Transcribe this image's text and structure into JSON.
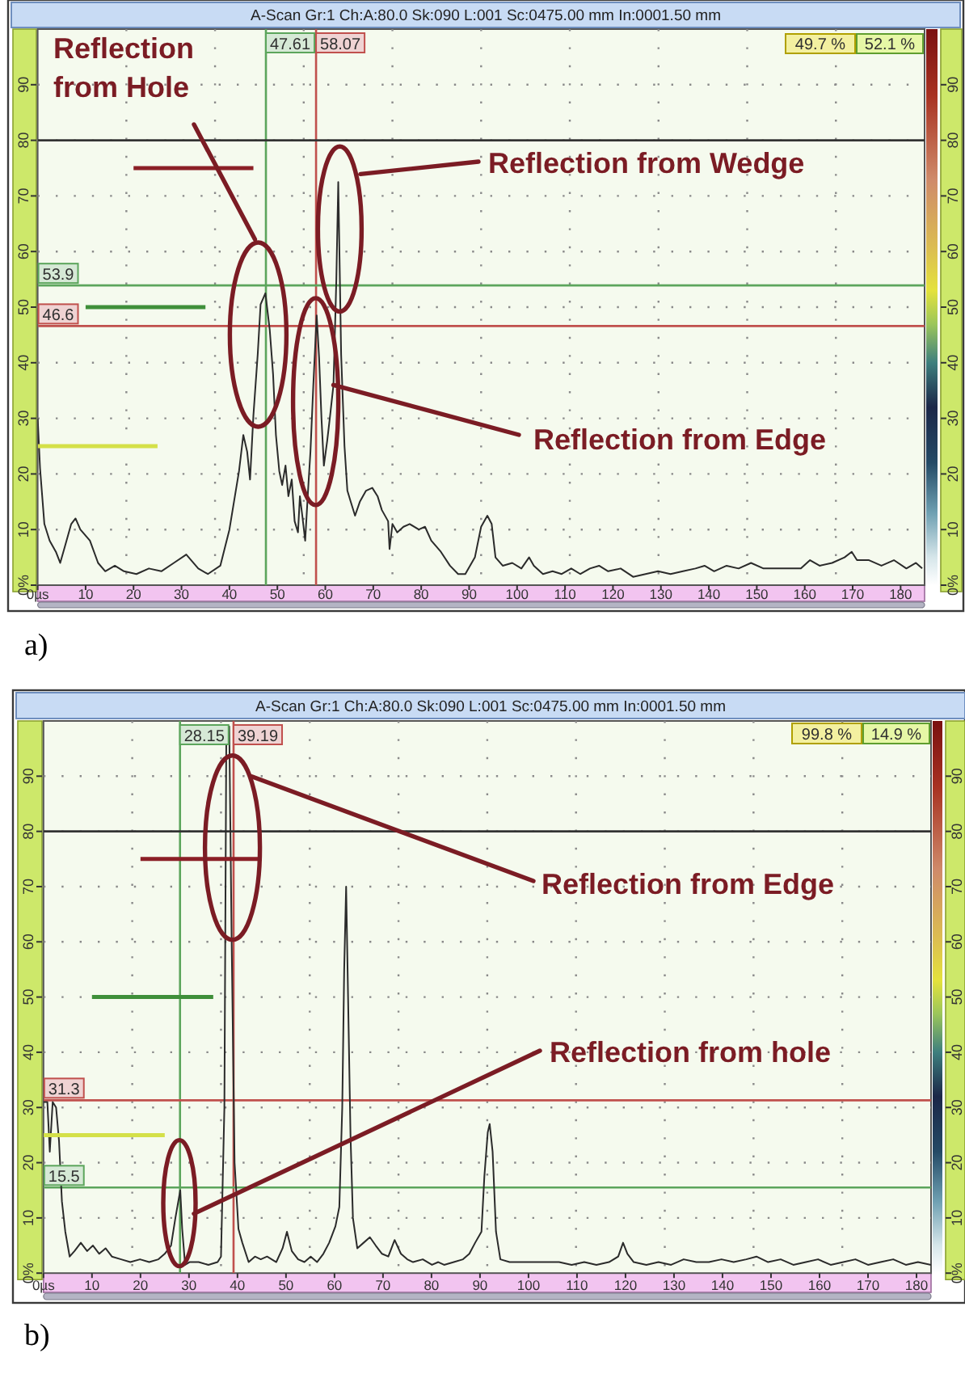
{
  "chart_data": [
    {
      "type": "line",
      "title": "A-Scan Gr:1 Ch:A:80.0 Sk:090 L:001 Sc:0475.00 mm In:0001.50 mm",
      "xlim": [
        0,
        185
      ],
      "xticks": [
        {
          "value": 0,
          "label": "0µs"
        },
        10,
        20,
        30,
        40,
        50,
        60,
        70,
        80,
        90,
        100,
        110,
        120,
        130,
        140,
        150,
        160,
        170,
        180
      ],
      "ylim": [
        0,
        100
      ],
      "yticks": [
        {
          "value": 0,
          "label": "0%"
        },
        10,
        20,
        30,
        40,
        50,
        60,
        70,
        80,
        90
      ],
      "y2lim": [
        0,
        100
      ],
      "y2ticks": [
        {
          "value": 0,
          "label": "0%"
        },
        10,
        20,
        30,
        40,
        50,
        60,
        70,
        80,
        90
      ],
      "grid": true,
      "series": [
        {
          "color": "#2b2b2b",
          "x": [
            0,
            0.5,
            1.4,
            2.5,
            3.8,
            4.7,
            5.7,
            7,
            7.9,
            8.9,
            10.9,
            12.6,
            14.1,
            16.1,
            18,
            20.6,
            23.2,
            25.8,
            28.4,
            31,
            33.5,
            35.5,
            38.1,
            40,
            42,
            42.9,
            43.7,
            44.3,
            45,
            45.9,
            46.5,
            47.5,
            48.4,
            49.1,
            49.7,
            50.4,
            51,
            51.7,
            52.3,
            53,
            53.6,
            54.3,
            54.7,
            55.2,
            55.8,
            56.5,
            56.9,
            57.5,
            58.2,
            58.7,
            59.2,
            59.7,
            60.4,
            61,
            61.7,
            62.3,
            62.7,
            63.3,
            64,
            64.6,
            65.3,
            66.2,
            67.2,
            68.5,
            69.8,
            70.9,
            71.8,
            73.1,
            73.4,
            74,
            75,
            76.3,
            77.6,
            79.5,
            80.8,
            82.1,
            84.1,
            86,
            87.7,
            89.2,
            91.2,
            92.5,
            93.8,
            94.7,
            95.5,
            97,
            99,
            100.9,
            102.5,
            103.5,
            105.4,
            107.4,
            109.3,
            111.3,
            113.2,
            115.2,
            117.1,
            119,
            121.6,
            124.2,
            126.8,
            129.4,
            132,
            134.6,
            137.2,
            139.1,
            141.1,
            143.7,
            146.2,
            148.8,
            151.4,
            154,
            156.6,
            159.2,
            161.1,
            163.1,
            165.7,
            168.3,
            169.8,
            170.9,
            173.4,
            176,
            178.6,
            181.2,
            183.2,
            184.5
          ],
          "values": [
            30,
            21,
            11,
            8,
            6,
            4,
            7,
            11,
            12,
            10,
            8,
            4,
            2.5,
            3.5,
            2.5,
            2,
            3,
            2.5,
            4,
            5.5,
            3,
            2,
            3.5,
            10,
            20.5,
            27,
            24,
            19,
            30.5,
            41.5,
            50.5,
            52.5,
            46,
            38,
            27,
            20.5,
            18,
            21.5,
            16,
            19,
            11.5,
            9.5,
            16,
            12.5,
            8,
            18.5,
            24,
            36,
            48.5,
            41,
            30,
            21.5,
            26,
            30.5,
            36,
            55,
            72.5,
            41.5,
            25,
            17,
            15,
            12.5,
            15,
            17,
            17.5,
            16,
            13.5,
            11.5,
            6.5,
            11,
            9.5,
            10.5,
            11,
            10,
            10.5,
            8,
            6,
            3.5,
            2,
            2,
            5,
            10.5,
            12.5,
            11,
            5,
            3.5,
            4,
            3,
            5,
            3.5,
            2,
            2.5,
            2,
            3,
            2,
            3,
            3.5,
            2.5,
            3,
            1.5,
            2,
            2.5,
            2,
            2.5,
            3,
            3.5,
            2.5,
            3.5,
            3,
            4,
            3,
            3,
            3,
            3,
            4.5,
            3.5,
            4,
            5,
            6,
            4.5,
            4.5,
            3.5,
            4.5,
            3,
            4,
            3
          ]
        },
        {
          "color": "#8b1f26",
          "x": [
            20,
            45
          ],
          "values": [
            75,
            75
          ]
        },
        {
          "color": "#3f8f3a",
          "x": [
            10,
            35
          ],
          "values": [
            50,
            50
          ]
        },
        {
          "color": "#d4e048",
          "x": [
            0,
            25
          ],
          "values": [
            25,
            25
          ]
        }
      ],
      "ref_lines": [
        {
          "axis": "x",
          "value": 47.61,
          "label": "47.61",
          "color": "#5ca55c"
        },
        {
          "axis": "x",
          "value": 58.07,
          "label": "58.07",
          "color": "#c0504d"
        },
        {
          "axis": "y",
          "value": 53.9,
          "label": "53.9",
          "color": "#5ca55c"
        },
        {
          "axis": "y",
          "value": 46.6,
          "label": "46.6",
          "color": "#c0504d"
        },
        {
          "axis": "y",
          "value": 80,
          "color": "#333333"
        }
      ],
      "annotations": [
        "49.7 %",
        "52.1 %",
        "Reflection from Hole",
        "Reflection from Wedge",
        {
          "text": "Reflection from Edge",
          "x": 61.7,
          "y": 36
        },
        "a)"
      ]
    },
    {
      "type": "line",
      "title": "A-Scan Gr:1 Ch:A:80.0 Sk:090 L:001 Sc:0475.00 mm In:0001.50 mm",
      "xlim": [
        0,
        183
      ],
      "xticks": [
        {
          "value": 0,
          "label": "0µs"
        },
        10,
        20,
        30,
        40,
        50,
        60,
        70,
        80,
        90,
        100,
        110,
        120,
        130,
        140,
        150,
        160,
        170,
        180
      ],
      "ylim": [
        0,
        100
      ],
      "yticks": [
        {
          "value": 0,
          "label": "0%"
        },
        10,
        20,
        30,
        40,
        50,
        60,
        70,
        80,
        90
      ],
      "y2lim": [
        0,
        100
      ],
      "y2ticks": [
        {
          "value": 0,
          "label": "0%"
        },
        10,
        20,
        30,
        40,
        50,
        60,
        70,
        80,
        90
      ],
      "grid": true,
      "series": [
        {
          "color": "#2b2b2b",
          "x": [
            0,
            0.8,
            1.3,
            1.9,
            2.6,
            3.2,
            3.8,
            4.5,
            5.4,
            6.4,
            7.7,
            9,
            10.2,
            11.5,
            12.8,
            14.1,
            16,
            17.9,
            19.9,
            21.8,
            23.7,
            25,
            26.3,
            27.2,
            28.2,
            28.6,
            29.2,
            30.1,
            32,
            34,
            35.9,
            36.6,
            37.3,
            37.7,
            38.3,
            38.8,
            39.4,
            40.2,
            41,
            42.3,
            43.6,
            44.8,
            46.1,
            48,
            49.3,
            50.2,
            51.2,
            52.5,
            53.8,
            55.1,
            56.4,
            57.7,
            58.9,
            60.2,
            61,
            61.6,
            62,
            62.4,
            62.8,
            63.3,
            63.8,
            64.7,
            66,
            67.3,
            68.5,
            69.8,
            71.1,
            72.4,
            73.7,
            75,
            76.2,
            78.2,
            80.1,
            81.4,
            82.6,
            84.6,
            86.5,
            87.8,
            89,
            90.3,
            90.9,
            91.6,
            92,
            92.6,
            93.3,
            94.2,
            96.1,
            98.7,
            101.2,
            103.8,
            106.3,
            108.9,
            111.5,
            114,
            116.6,
            118.5,
            119.5,
            120.4,
            121.7,
            124.3,
            126.8,
            129.4,
            132,
            134.6,
            137.2,
            139.8,
            142.3,
            144.9,
            147,
            149.4,
            152,
            154.6,
            157.2,
            159.7,
            162.3,
            164.9,
            167.4,
            170,
            172.6,
            175.2,
            177.8,
            180.3,
            183
          ],
          "values": [
            31,
            31,
            22,
            31,
            30,
            24,
            13,
            7.5,
            3,
            4,
            5.5,
            4,
            5,
            3.5,
            4.5,
            3,
            2.5,
            2,
            2.5,
            2,
            2.5,
            3.5,
            5,
            10,
            15,
            8,
            1.5,
            2,
            2,
            1.5,
            2,
            3,
            30,
            98,
            99,
            60,
            20,
            8,
            5.5,
            2,
            3,
            2.5,
            3,
            2,
            4.5,
            7.5,
            4,
            2.5,
            2,
            3,
            2,
            3.5,
            5.5,
            8.5,
            12,
            30,
            55,
            70,
            50,
            25,
            10,
            4.5,
            5.5,
            6.5,
            5,
            3.5,
            3,
            6,
            3.5,
            2.5,
            2,
            2.5,
            1.5,
            2,
            1.5,
            2,
            2.5,
            3.5,
            5.5,
            7.5,
            17.5,
            25.5,
            27,
            22,
            7.5,
            2.5,
            2,
            2,
            2,
            2,
            2,
            1.5,
            2,
            1.5,
            2,
            3,
            5.5,
            3.5,
            2,
            1.5,
            2,
            1.5,
            2.5,
            2,
            2,
            2.5,
            2,
            2.5,
            3,
            2,
            2.5,
            1.5,
            2,
            2.5,
            1.5,
            2,
            2.5,
            1.5,
            2,
            2.5,
            1.5,
            2,
            1.5
          ]
        },
        {
          "color": "#8b1f26",
          "x": [
            20,
            45
          ],
          "values": [
            75,
            75
          ]
        },
        {
          "color": "#3f8f3a",
          "x": [
            10,
            35
          ],
          "values": [
            50,
            50
          ]
        },
        {
          "color": "#d4e048",
          "x": [
            0,
            25
          ],
          "values": [
            25,
            25
          ]
        }
      ],
      "ref_lines": [
        {
          "axis": "x",
          "value": 28.15,
          "label": "28.15",
          "color": "#5ca55c"
        },
        {
          "axis": "x",
          "value": 39.19,
          "label": "39.19",
          "color": "#c0504d"
        },
        {
          "axis": "y",
          "value": 31.3,
          "label": "31.3",
          "color": "#c0504d"
        },
        {
          "axis": "y",
          "value": 15.5,
          "label": "15.5",
          "color": "#5ca55c"
        },
        {
          "axis": "y",
          "value": 80,
          "color": "#333333"
        }
      ],
      "annotations": [
        "99.8 %",
        "14.9 %",
        "Reflection from Edge",
        "Reflection from hole",
        "b)"
      ]
    }
  ]
}
